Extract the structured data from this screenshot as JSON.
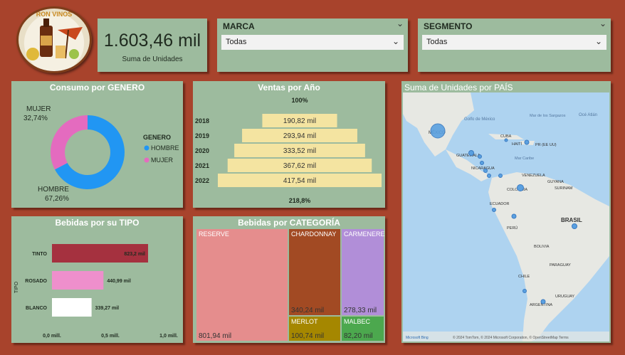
{
  "logo": {
    "text": "RON VINOS",
    "name": "logo"
  },
  "kpi": {
    "value": "1.603,46 mil",
    "label": "Suma de Unidades"
  },
  "slicers": [
    {
      "title": "MARCA",
      "value": "Todas"
    },
    {
      "title": "SEGMENTO",
      "value": "Todas"
    }
  ],
  "genero": {
    "title": "Consumo por GENERO",
    "legend_title": "GENERO",
    "labels": {
      "mujer": "MUJER",
      "mujer_pct": "32,74%",
      "hombre": "HOMBRE",
      "hombre_pct": "67,26%"
    },
    "legend": [
      "HOMBRE",
      "MUJER"
    ],
    "colors": {
      "hombre": "#2196f3",
      "mujer": "#e46bbf"
    }
  },
  "ventas": {
    "title": "Ventas por Año",
    "top_label": "100%",
    "bottom_label": "218,8%",
    "bar_color": "#f4e4a1"
  },
  "tipo": {
    "title": "Bebidas por su TIPO",
    "axis_label": "TIPO",
    "ticks": [
      "0,0 mill.",
      "0,5 mill.",
      "1,0 mill."
    ]
  },
  "categoria": {
    "title": "Bebidas por CATEGORÍA",
    "cells": [
      {
        "name": "RESERVE",
        "value": "801,94 mil",
        "color": "#e58d8d"
      },
      {
        "name": "CHARDONNAY",
        "value": "340,24 mil",
        "color": "#a24a23"
      },
      {
        "name": "CARMENERE",
        "value": "278,33 mil",
        "color": "#b18ed8"
      },
      {
        "name": "MERLOT",
        "value": "100,74 mil",
        "color": "#a58700"
      },
      {
        "name": "MALBEC",
        "value": "82,20 mil",
        "color": "#4ca84e"
      }
    ]
  },
  "mapa": {
    "title": "Suma de Unidades por PAÍS",
    "labels": [
      "Golfo de México",
      "Mar de los Sargazos",
      "Océ Atlán",
      "CUBA",
      "HAITÍ",
      "PR (EE UU)",
      "Mar Caribe",
      "GUATEMALA",
      "NICARAGUA",
      "VENEZUELA",
      "GUYANA",
      "SURINAM",
      "COLOMBIA",
      "ECUADOR",
      "PERÚ",
      "BRASIL",
      "BOLIVIA",
      "PARAGUAY",
      "CHILE",
      "URUGUAY",
      "ARGENTINA",
      "MÉXICO"
    ],
    "footer": "© 2024 TomTom, © 2024 Microsoft Corporation, © OpenStreetMap  Terms",
    "brand": "Microsoft Bing"
  },
  "chart_data": [
    {
      "type": "pie",
      "title": "Consumo por GENERO",
      "categories": [
        "HOMBRE",
        "MUJER"
      ],
      "values": [
        67.26,
        32.74
      ]
    },
    {
      "type": "bar",
      "title": "Ventas por Año",
      "categories": [
        "2018",
        "2019",
        "2020",
        "2021",
        "2022"
      ],
      "values": [
        190.82,
        293.94,
        333.52,
        367.62,
        417.54
      ],
      "value_labels": [
        "190,82 mil",
        "293,94 mil",
        "333,52 mil",
        "367,62 mil",
        "417,54 mil"
      ]
    },
    {
      "type": "bar",
      "title": "Bebidas por su TIPO",
      "categories": [
        "TINTO",
        "ROSADO",
        "BLANCO"
      ],
      "values": [
        823.2,
        440.99,
        339.27
      ],
      "value_labels": [
        "823,2 mil",
        "440,99 mil",
        "339,27 mil"
      ],
      "colors": [
        "#a5313f",
        "#ee8fcc",
        "#ffffff"
      ],
      "xlim": [
        0,
        1000
      ]
    }
  ]
}
